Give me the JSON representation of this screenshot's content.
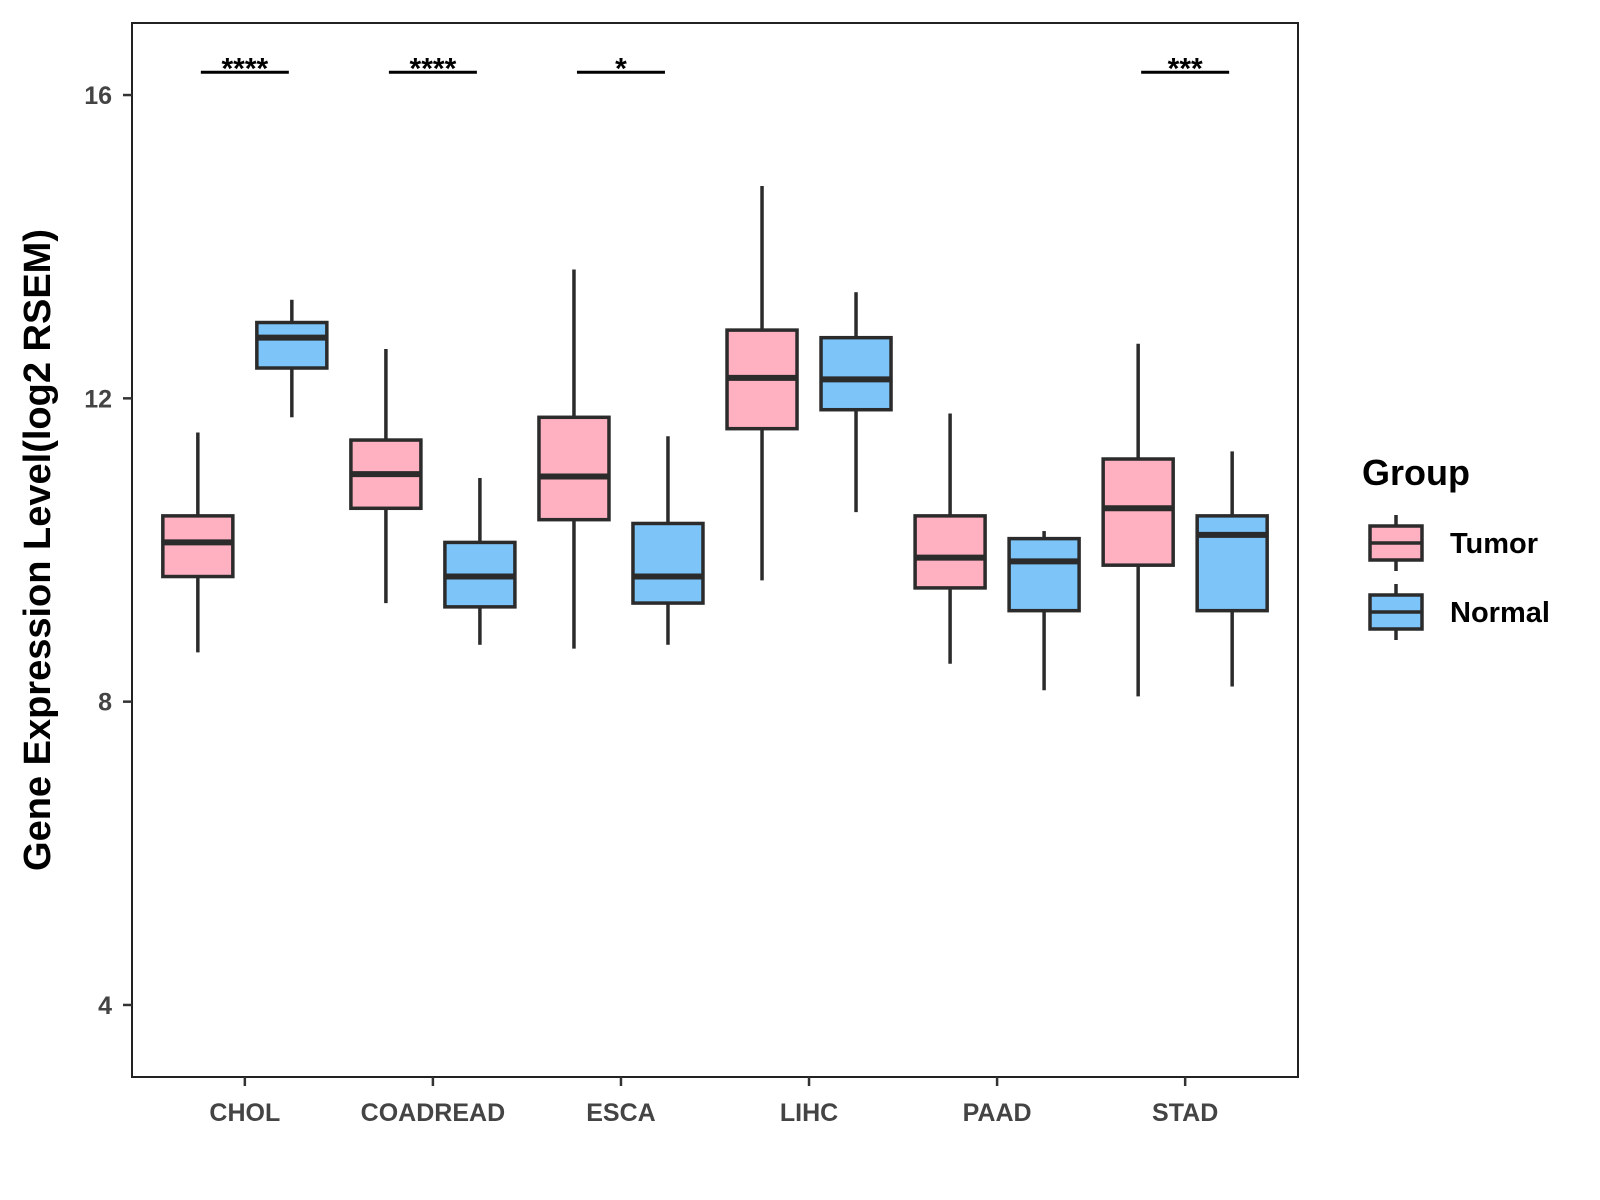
{
  "chart_data": {
    "type": "boxplot",
    "title": "",
    "xlabel": "",
    "ylabel": "Gene Expression Level(log2 RSEM)",
    "ylim": [
      3.05,
      16.95
    ],
    "yticks": [
      4,
      8,
      12,
      16
    ],
    "categories": [
      "CHOL",
      "COADREAD",
      "ESCA",
      "LIHC",
      "PAAD",
      "STAD"
    ],
    "legend": {
      "title": "Group",
      "position": "right"
    },
    "series": [
      {
        "name": "Tumor",
        "color": "#FFB0C1",
        "boxes": [
          {
            "whisker_low": 8.65,
            "q1": 9.65,
            "median": 10.1,
            "q3": 10.45,
            "whisker_high": 11.55
          },
          {
            "whisker_low": 9.3,
            "q1": 10.55,
            "median": 11.0,
            "q3": 11.45,
            "whisker_high": 12.65
          },
          {
            "whisker_low": 8.7,
            "q1": 10.4,
            "median": 10.97,
            "q3": 11.75,
            "whisker_high": 13.7
          },
          {
            "whisker_low": 9.6,
            "q1": 11.6,
            "median": 12.27,
            "q3": 12.9,
            "whisker_high": 14.8
          },
          {
            "whisker_low": 8.5,
            "q1": 9.5,
            "median": 9.9,
            "q3": 10.45,
            "whisker_high": 11.8
          },
          {
            "whisker_low": 8.07,
            "q1": 9.8,
            "median": 10.55,
            "q3": 11.2,
            "whisker_high": 12.72
          }
        ]
      },
      {
        "name": "Normal",
        "color": "#7DC4F9",
        "boxes": [
          {
            "whisker_low": 11.75,
            "q1": 12.4,
            "median": 12.8,
            "q3": 13.0,
            "whisker_high": 13.3
          },
          {
            "whisker_low": 8.75,
            "q1": 9.25,
            "median": 9.65,
            "q3": 10.1,
            "whisker_high": 10.95
          },
          {
            "whisker_low": 8.75,
            "q1": 9.3,
            "median": 9.65,
            "q3": 10.35,
            "whisker_high": 11.5
          },
          {
            "whisker_low": 10.5,
            "q1": 11.85,
            "median": 12.25,
            "q3": 12.8,
            "whisker_high": 13.4
          },
          {
            "whisker_low": 8.15,
            "q1": 9.2,
            "median": 9.85,
            "q3": 10.15,
            "whisker_high": 10.25
          },
          {
            "whisker_low": 8.2,
            "q1": 9.2,
            "median": 10.2,
            "q3": 10.45,
            "whisker_high": 11.3
          }
        ]
      }
    ],
    "significance": [
      {
        "category": "CHOL",
        "label": "****",
        "y": 16.3
      },
      {
        "category": "COADREAD",
        "label": "****",
        "y": 16.3
      },
      {
        "category": "ESCA",
        "label": "*",
        "y": 16.3
      },
      {
        "category": "STAD",
        "label": "***",
        "y": 16.3
      }
    ]
  }
}
